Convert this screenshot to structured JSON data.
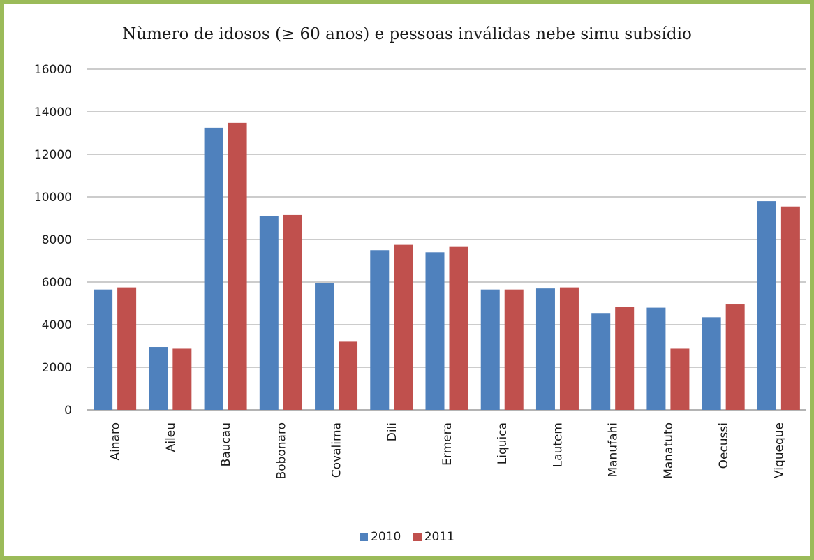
{
  "chart_data": {
    "type": "bar",
    "title": "Nùmero de idosos (≥ 60 anos) e pessoas inválidas nebe simu subsídio",
    "xlabel": "",
    "ylabel": "",
    "ylim": [
      0,
      16000
    ],
    "yticks": [
      "0",
      "2000",
      "4000",
      "6000",
      "8000",
      "10000",
      "12000",
      "14000",
      "16000"
    ],
    "grid": true,
    "legend_position": "bottom",
    "categories": [
      "Ainaro",
      "Aileu",
      "Baucau",
      "Bobonaro",
      "Covalima",
      "Dili",
      "Ermera",
      "Liquica",
      "Lautem",
      "Manufahi",
      "Manatuto",
      "Oecussi",
      "Viqueque"
    ],
    "series": [
      {
        "name": "2010",
        "color": "#4f81bd",
        "values": [
          5650,
          2950,
          13250,
          9100,
          5950,
          7500,
          7400,
          5650,
          5700,
          4550,
          4800,
          4350,
          9800
        ]
      },
      {
        "name": "2011",
        "color": "#c0504d",
        "values": [
          5750,
          2870,
          13480,
          9150,
          3200,
          7750,
          7650,
          5650,
          5750,
          4850,
          2870,
          4950,
          9550
        ]
      }
    ]
  }
}
